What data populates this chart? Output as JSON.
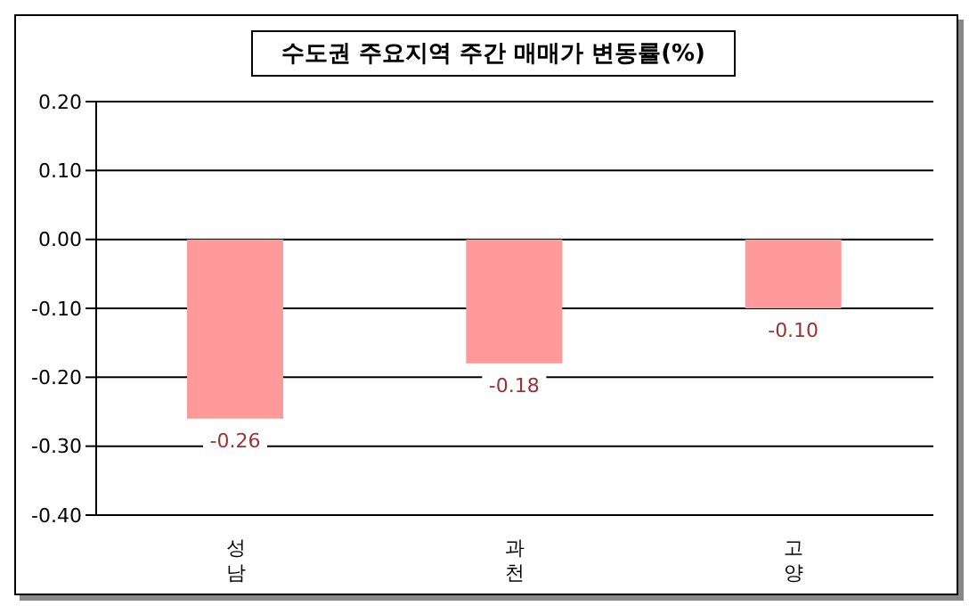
{
  "chart_data": {
    "type": "bar",
    "title": "수도권 주요지역 주간 매매가 변동률(%)",
    "categories": [
      "성남",
      "과천",
      "고양"
    ],
    "values": [
      -0.26,
      -0.18,
      -0.1
    ],
    "color": "#ff9a9a",
    "ylim": [
      -0.4,
      0.2
    ],
    "yticks": [
      {
        "value": -0.4,
        "label": "-0.40"
      },
      {
        "value": -0.3,
        "label": "-0.30"
      },
      {
        "value": -0.2,
        "label": "-0.20"
      },
      {
        "value": -0.1,
        "label": "-0.10"
      },
      {
        "value": 0,
        "label": "0.00"
      },
      {
        "value": 0.1,
        "label": "0.10"
      },
      {
        "value": 0.2,
        "label": "0.20"
      }
    ],
    "value_labels": [
      "-0.26",
      "-0.18",
      "-0.10"
    ],
    "grid": "y"
  }
}
